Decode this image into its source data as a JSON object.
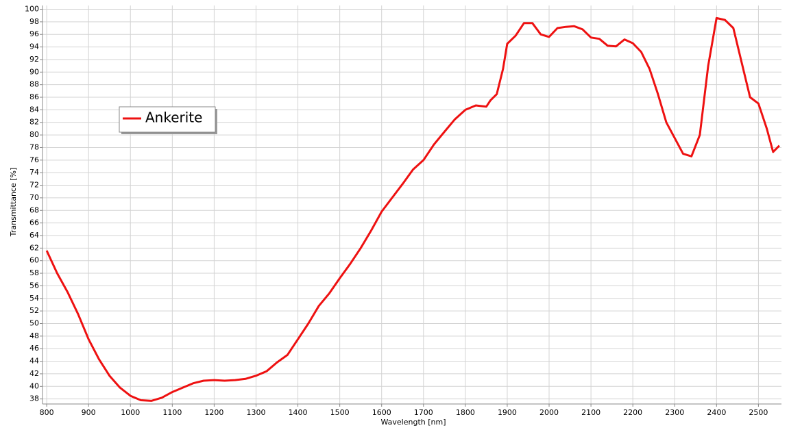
{
  "chart_data": {
    "type": "line",
    "x_label": "Wavelength [nm]",
    "y_label": "Transmittance [%]",
    "x": [
      800,
      825,
      850,
      875,
      900,
      925,
      950,
      975,
      1000,
      1025,
      1050,
      1075,
      1100,
      1125,
      1150,
      1175,
      1200,
      1225,
      1250,
      1275,
      1300,
      1325,
      1350,
      1375,
      1400,
      1425,
      1450,
      1475,
      1500,
      1525,
      1550,
      1575,
      1600,
      1625,
      1650,
      1675,
      1700,
      1725,
      1750,
      1775,
      1800,
      1825,
      1850,
      1860,
      1875,
      1890,
      1900,
      1920,
      1940,
      1960,
      1980,
      2000,
      2020,
      2040,
      2060,
      2080,
      2100,
      2120,
      2140,
      2160,
      2180,
      2200,
      2220,
      2240,
      2260,
      2280,
      2300,
      2320,
      2340,
      2360,
      2380,
      2400,
      2420,
      2440,
      2460,
      2480,
      2500,
      2520,
      2535,
      2550
    ],
    "series": [
      {
        "name": "Ankerite",
        "color": "#ee1111",
        "values": [
          61.6,
          58,
          55,
          51.5,
          47.5,
          44.3,
          41.7,
          39.8,
          38.5,
          37.8,
          37.7,
          38.2,
          39.1,
          39.8,
          40.5,
          40.9,
          41,
          40.9,
          41,
          41.2,
          41.7,
          42.4,
          43.8,
          45,
          47.5,
          50,
          52.8,
          54.8,
          57.2,
          59.5,
          62,
          64.8,
          67.8,
          70,
          72.2,
          74.5,
          76,
          78.5,
          80.5,
          82.5,
          84,
          84.7,
          84.5,
          85.5,
          86.5,
          90.5,
          94.5,
          95.8,
          97.8,
          97.8,
          96,
          95.6,
          97,
          97.2,
          97.3,
          96.8,
          95.5,
          95.3,
          94.2,
          94.1,
          95.2,
          94.6,
          93.2,
          90.5,
          86.5,
          82,
          79.5,
          77,
          76.6,
          80,
          91,
          98.6,
          98.3,
          97,
          91.5,
          86,
          85,
          81,
          77.3,
          78.3
        ]
      }
    ],
    "xlim": [
      790,
      2555
    ],
    "ylim": [
      37.2,
      100.6
    ],
    "xticks": [
      800,
      900,
      1000,
      1100,
      1200,
      1300,
      1400,
      1500,
      1600,
      1700,
      1800,
      1900,
      2000,
      2100,
      2200,
      2300,
      2400,
      2500
    ],
    "yticks": [
      38,
      40,
      42,
      44,
      46,
      48,
      50,
      52,
      54,
      56,
      58,
      60,
      62,
      64,
      66,
      68,
      70,
      72,
      74,
      76,
      78,
      80,
      82,
      84,
      86,
      88,
      90,
      92,
      94,
      96,
      98,
      100
    ],
    "grid": true
  }
}
